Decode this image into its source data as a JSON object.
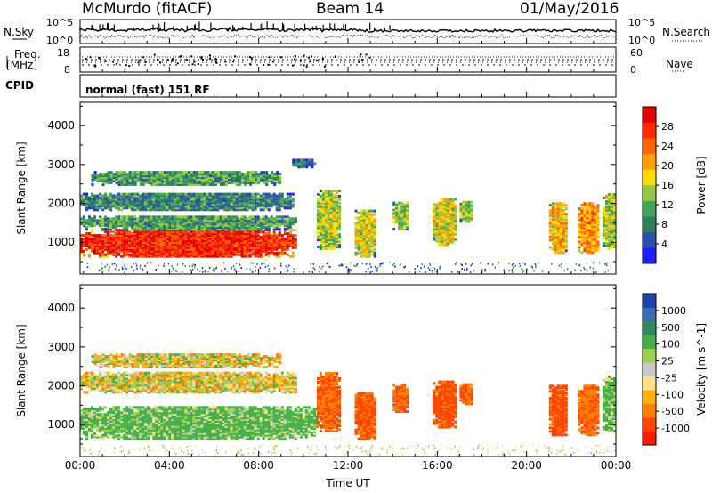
{
  "header": {
    "station": "McMurdo (fitACF)",
    "beam": "Beam 14",
    "date": "01/May/2016"
  },
  "top_panels": {
    "nsky_label": "N.Sky",
    "nsearch_label": "N.Search",
    "freq_label_line1": "Freq.",
    "freq_label_line2": "[MHz]",
    "nave_label": "Nave",
    "cpid_label": "CPID",
    "cpid_value": "normal (fast) 151 RF",
    "left_ticks_top": [
      "10^5",
      "10^0"
    ],
    "right_ticks_top": [
      "10^5",
      "10^0"
    ],
    "freq_ticks": [
      "18",
      "8"
    ],
    "nave_ticks": [
      "60",
      "0"
    ]
  },
  "axes": {
    "xlabel": "Time UT",
    "ylabel": "Slant Range [km]",
    "x_ticks": [
      "00:00",
      "04:00",
      "08:00",
      "12:00",
      "16:00",
      "20:00",
      "00:00"
    ],
    "y_ticks": [
      "1000",
      "2000",
      "3000",
      "4000"
    ]
  },
  "colorbars": {
    "power": {
      "label": "Power [dB]",
      "ticks": [
        "4",
        "8",
        "12",
        "16",
        "20",
        "24",
        "28"
      ],
      "colors": [
        "#1e1eff",
        "#2c4fb0",
        "#2e7d5e",
        "#41a65a",
        "#93c940",
        "#ffdc00",
        "#ffa000",
        "#ff6400",
        "#ff2a00",
        "#e80000"
      ]
    },
    "velocity": {
      "label": "Velocity [m s^-1]",
      "ticks": [
        "1000",
        "500",
        "100",
        "25",
        "-25",
        "-100",
        "-500",
        "-1000"
      ],
      "colors": [
        "#2040b0",
        "#3c6ab4",
        "#2e8b5e",
        "#45b048",
        "#9ed050",
        "#c8c8c8",
        "#ffe08a",
        "#ffb300",
        "#ff7f00",
        "#ff4500",
        "#ff1a00"
      ]
    }
  },
  "chart_data": [
    {
      "type": "heatmap",
      "title": "Power",
      "xlabel": "Time UT",
      "ylabel": "Slant Range [km]",
      "xlim": [
        0,
        24
      ],
      "ylim": [
        180,
        4600
      ],
      "colorbar_label": "Power [dB]",
      "blobs": [
        {
          "t0": 0.0,
          "t1": 9.6,
          "r0": 600,
          "r1": 1300,
          "value": 28
        },
        {
          "t0": 0.0,
          "t1": 9.6,
          "r0": 1300,
          "r1": 1650,
          "value": 12
        },
        {
          "t0": 0.0,
          "t1": 9.5,
          "r0": 1800,
          "r1": 2250,
          "value": 10
        },
        {
          "t0": 0.5,
          "t1": 9.0,
          "r0": 2450,
          "r1": 2800,
          "value": 12
        },
        {
          "t0": 10.6,
          "t1": 11.6,
          "r0": 800,
          "r1": 2300,
          "value": 16
        },
        {
          "t0": 12.3,
          "t1": 13.2,
          "r0": 600,
          "r1": 1800,
          "value": 18
        },
        {
          "t0": 14.0,
          "t1": 14.7,
          "r0": 1300,
          "r1": 2000,
          "value": 16
        },
        {
          "t0": 15.8,
          "t1": 16.8,
          "r0": 900,
          "r1": 2100,
          "value": 18
        },
        {
          "t0": 17.0,
          "t1": 17.6,
          "r0": 1500,
          "r1": 2000,
          "value": 16
        },
        {
          "t0": 21.0,
          "t1": 21.8,
          "r0": 700,
          "r1": 2000,
          "value": 20
        },
        {
          "t0": 22.3,
          "t1": 23.2,
          "r0": 700,
          "r1": 2000,
          "value": 22
        },
        {
          "t0": 23.4,
          "t1": 24.0,
          "r0": 800,
          "r1": 2200,
          "value": 16
        },
        {
          "t0": 9.5,
          "t1": 10.5,
          "r0": 2900,
          "r1": 3100,
          "value": 8
        }
      ]
    },
    {
      "type": "heatmap",
      "title": "Velocity",
      "xlabel": "Time UT",
      "ylabel": "Slant Range [km]",
      "xlim": [
        0,
        24
      ],
      "ylim": [
        180,
        4600
      ],
      "colorbar_label": "Velocity [m s^-1]",
      "blobs": [
        {
          "t0": 0.0,
          "t1": 10.6,
          "r0": 600,
          "r1": 1450,
          "value": 150
        },
        {
          "t0": 0.0,
          "t1": 9.6,
          "r0": 1800,
          "r1": 2300,
          "value": 0
        },
        {
          "t0": 0.5,
          "t1": 9.0,
          "r0": 2450,
          "r1": 2800,
          "value": 0
        },
        {
          "t0": 10.6,
          "t1": 11.6,
          "r0": 800,
          "r1": 2300,
          "value": -300
        },
        {
          "t0": 12.3,
          "t1": 13.2,
          "r0": 600,
          "r1": 1800,
          "value": -350
        },
        {
          "t0": 14.0,
          "t1": 14.7,
          "r0": 1300,
          "r1": 2000,
          "value": -300
        },
        {
          "t0": 15.8,
          "t1": 16.8,
          "r0": 900,
          "r1": 2100,
          "value": -400
        },
        {
          "t0": 17.0,
          "t1": 17.6,
          "r0": 1500,
          "r1": 2000,
          "value": -300
        },
        {
          "t0": 21.0,
          "t1": 21.8,
          "r0": 700,
          "r1": 2000,
          "value": -400
        },
        {
          "t0": 22.3,
          "t1": 23.2,
          "r0": 700,
          "r1": 2000,
          "value": -250
        },
        {
          "t0": 23.4,
          "t1": 24.0,
          "r0": 800,
          "r1": 2200,
          "value": 150
        }
      ]
    }
  ]
}
